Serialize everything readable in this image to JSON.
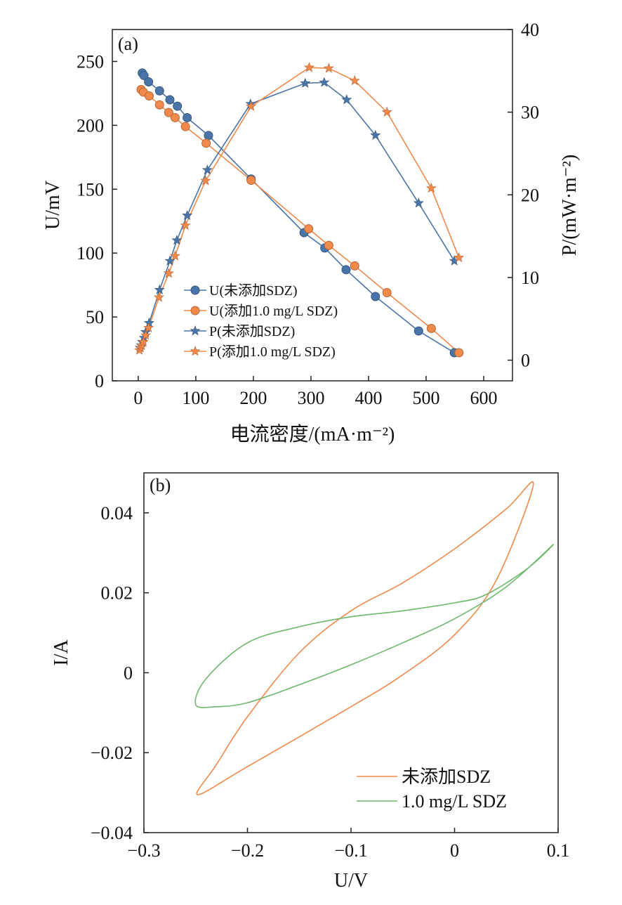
{
  "chart_data": [
    {
      "type": "line",
      "panel_label": "(a)",
      "xlabel": "电流密度/(mA·m⁻²)",
      "ylabel_left": "U/mV",
      "ylabel_right": "P/(mW·m⁻²)",
      "xlim": [
        -45,
        650
      ],
      "ylim_left": [
        0,
        275
      ],
      "ylim_right": [
        -2.5,
        40
      ],
      "x_ticks": [
        "0",
        "100",
        "200",
        "300",
        "400",
        "500",
        "600"
      ],
      "y_left_ticks": [
        "0",
        "50",
        "100",
        "150",
        "200",
        "250"
      ],
      "y_right_ticks": [
        "0",
        "10",
        "20",
        "30",
        "40"
      ],
      "legend_position": "lower-left",
      "series": [
        {
          "name": "U(未添加SDZ)",
          "axis": "left",
          "marker": "circle",
          "color": "#4a75a8",
          "x": [
            7,
            10,
            18,
            37,
            55,
            68,
            85,
            122,
            196,
            288,
            324,
            361,
            412,
            487,
            549
          ],
          "y": [
            241,
            239,
            234,
            227,
            220,
            215,
            206,
            192,
            158,
            116,
            104,
            87,
            66,
            39,
            22
          ]
        },
        {
          "name": "U(添加1.0 mg/L SDZ)",
          "axis": "left",
          "marker": "circle",
          "color": "#f0894a",
          "x": [
            5,
            9,
            19,
            37,
            53,
            64,
            82,
            118,
            196,
            296,
            331,
            376,
            432,
            509,
            557
          ],
          "y": [
            228,
            226,
            223,
            216,
            210,
            206,
            199,
            186,
            157,
            119,
            106,
            90,
            69,
            41,
            22
          ]
        },
        {
          "name": "P(未添加SDZ)",
          "axis": "right",
          "marker": "star",
          "color": "#4a75a8",
          "x": [
            3,
            5,
            7,
            10,
            13,
            19,
            37,
            55,
            67,
            85,
            120,
            195,
            290,
            323,
            362,
            412,
            487,
            549
          ],
          "y": [
            1.5,
            1.8,
            2.2,
            2.7,
            3.4,
            4.5,
            8.5,
            12.0,
            14.5,
            17.5,
            23.0,
            31.0,
            33.5,
            33.6,
            31.5,
            27.2,
            19.0,
            12.0
          ]
        },
        {
          "name": "P(添加1.0 mg/L SDZ)",
          "axis": "right",
          "marker": "star",
          "color": "#f0894a",
          "x": [
            2,
            4,
            6,
            9,
            13,
            18,
            36,
            53,
            64,
            82,
            117,
            196,
            297,
            331,
            376,
            432,
            509,
            557
          ],
          "y": [
            1.2,
            1.5,
            1.8,
            2.2,
            3.0,
            3.9,
            7.6,
            10.5,
            12.6,
            16.3,
            21.7,
            30.7,
            35.4,
            35.3,
            33.8,
            30.0,
            20.8,
            12.4
          ]
        }
      ]
    },
    {
      "type": "line",
      "panel_label": "(b)",
      "xlabel": "U/V",
      "ylabel": "I/A",
      "xlim": [
        -0.3,
        0.1
      ],
      "ylim": [
        -0.04,
        0.05
      ],
      "x_ticks": [
        "−0.3",
        "−0.2",
        "−0.1",
        "0",
        "0.1"
      ],
      "y_ticks": [
        "−0.04",
        "−0.02",
        "0",
        "0.02",
        "0.04"
      ],
      "legend_position": "lower-right",
      "series": [
        {
          "name": "未添加SDZ",
          "color": "#f0894a",
          "x": [
            -0.248,
            -0.2,
            -0.1,
            -0.05,
            0.0,
            0.04,
            0.076,
            0.05,
            0.0,
            -0.05,
            -0.1,
            -0.15,
            -0.2,
            -0.23,
            -0.248
          ],
          "y": [
            -0.0305,
            -0.0235,
            -0.0085,
            -0.0005,
            0.0095,
            0.023,
            0.047,
            0.041,
            0.031,
            0.0225,
            0.0155,
            0.005,
            -0.011,
            -0.023,
            -0.0305
          ]
        },
        {
          "name": "1.0 mg/L SDZ",
          "color": "#6db86a",
          "x": [
            -0.25,
            -0.23,
            -0.2,
            -0.15,
            -0.1,
            -0.05,
            0.0,
            0.05,
            0.095,
            0.07,
            0.03,
            0.0,
            -0.05,
            -0.1,
            -0.15,
            -0.2,
            -0.24,
            -0.25
          ],
          "y": [
            -0.008,
            -0.0085,
            -0.0075,
            -0.003,
            0.002,
            0.0075,
            0.0135,
            0.0215,
            0.032,
            0.026,
            0.0195,
            0.0175,
            0.0155,
            0.014,
            0.0115,
            0.0075,
            -0.0015,
            -0.008
          ]
        }
      ]
    }
  ]
}
